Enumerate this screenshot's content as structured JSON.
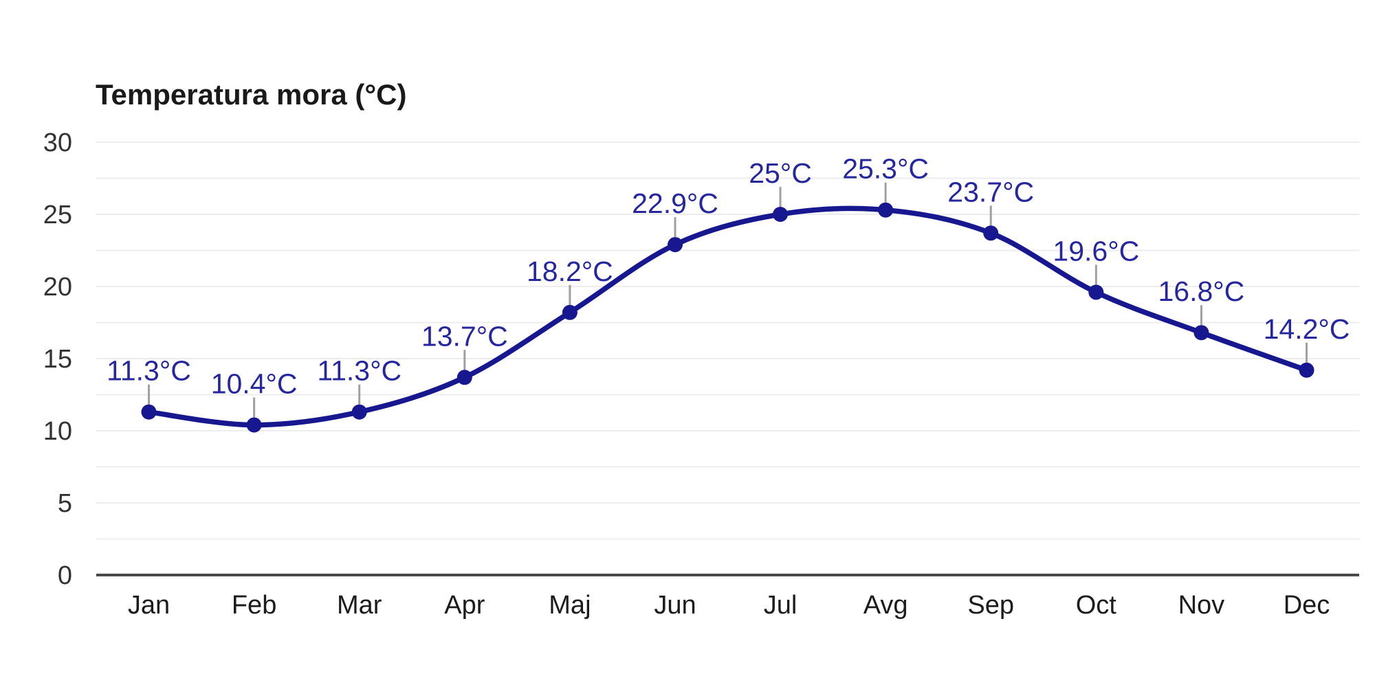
{
  "page": {
    "background": "#ffffff"
  },
  "chart_data": {
    "type": "line",
    "title": "Temperatura mora (°C)",
    "xlabel": "",
    "ylabel": "",
    "categories": [
      "Jan",
      "Feb",
      "Mar",
      "Apr",
      "Maj",
      "Jun",
      "Jul",
      "Avg",
      "Sep",
      "Oct",
      "Nov",
      "Dec"
    ],
    "values": [
      11.3,
      10.4,
      11.3,
      13.7,
      18.2,
      22.9,
      25,
      25.3,
      23.7,
      19.6,
      16.8,
      14.2
    ],
    "point_labels": [
      "11.3°C",
      "10.4°C",
      "11.3°C",
      "13.7°C",
      "18.2°C",
      "22.9°C",
      "25°C",
      "25.3°C",
      "23.7°C",
      "19.6°C",
      "16.8°C",
      "14.2°C"
    ],
    "ylim": [
      0,
      30
    ],
    "y_ticks": [
      0,
      5,
      10,
      15,
      20,
      25,
      30
    ],
    "grid_step": 2.5,
    "grid": true,
    "legend_position": "none",
    "curve": "smooth",
    "colors": {
      "line": "#17178f",
      "point": "#17178f",
      "point_label": "#26269e",
      "grid": "#ececec",
      "axis": "#4a4a4a",
      "tick_label": "#333333",
      "category_label": "#1c1c1c",
      "leader": "#a0a0a0",
      "title": "#1a1a1a",
      "background": "#ffffff"
    }
  }
}
